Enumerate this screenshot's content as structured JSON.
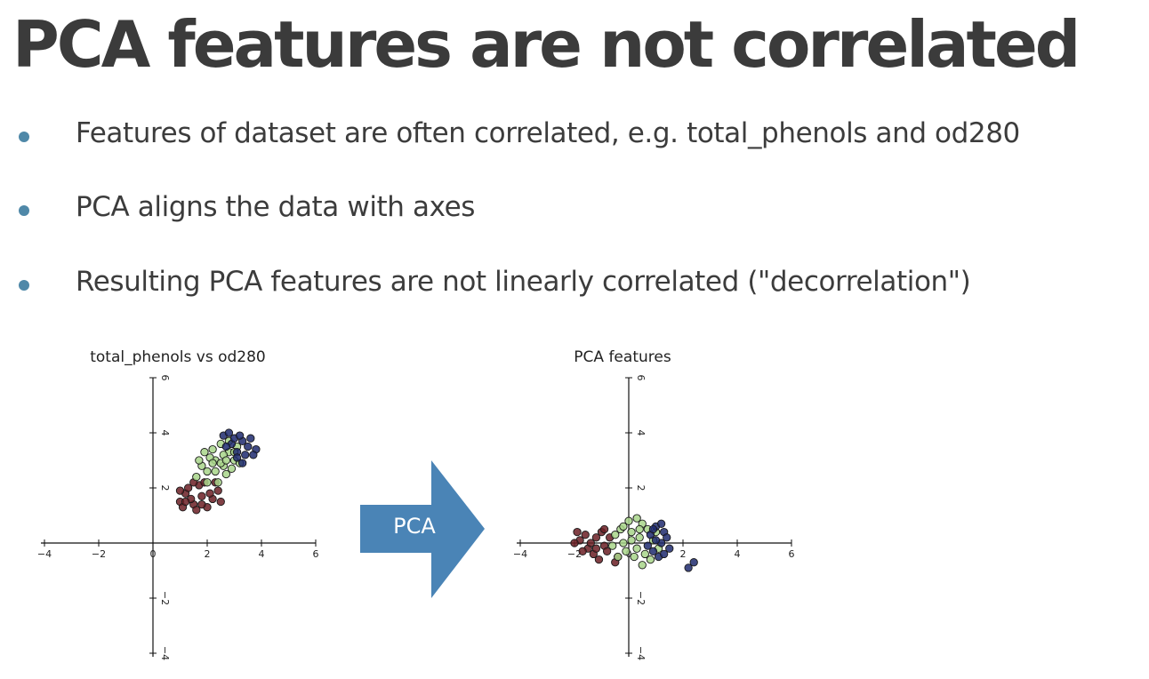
{
  "slide": {
    "title": "PCA features are not correlated",
    "bullets": [
      {
        "text": "Features of dataset are often correlated, e.g. total_phenols and od280"
      },
      {
        "text": "PCA aligns the data with axes"
      },
      {
        "text": "Resulting PCA features are not linearly correlated (\"decorrelation\")"
      }
    ],
    "arrow_label": "PCA",
    "colors": {
      "bullet": "#4f88a8",
      "arrow": "#4a84b6",
      "class_a": "#6b1f24",
      "class_b": "#a8d58a",
      "class_c": "#1e2a6e"
    }
  },
  "chart_data": [
    {
      "type": "scatter",
      "title": "total_phenols vs od280",
      "xlim": [
        -4,
        6
      ],
      "ylim": [
        -4,
        6
      ],
      "xticks": [
        -4,
        -2,
        0,
        2,
        4,
        6
      ],
      "yticks": [
        -4,
        -2,
        0,
        2,
        4,
        6
      ],
      "series": [
        {
          "color": "#6b1f24",
          "points": [
            [
              1.0,
              1.5
            ],
            [
              1.2,
              1.8
            ],
            [
              1.5,
              1.4
            ],
            [
              1.8,
              1.7
            ],
            [
              2.0,
              1.3
            ],
            [
              1.3,
              2.0
            ],
            [
              1.7,
              2.1
            ],
            [
              2.2,
              1.6
            ],
            [
              1.1,
              1.3
            ],
            [
              1.6,
              1.2
            ],
            [
              2.4,
              1.9
            ],
            [
              1.9,
              2.2
            ],
            [
              1.4,
              1.6
            ],
            [
              2.1,
              1.8
            ],
            [
              1.0,
              1.9
            ],
            [
              2.5,
              1.5
            ],
            [
              1.8,
              1.4
            ],
            [
              1.5,
              2.2
            ],
            [
              2.3,
              2.2
            ],
            [
              1.2,
              1.5
            ]
          ]
        },
        {
          "color": "#a8d58a",
          "points": [
            [
              2.0,
              2.6
            ],
            [
              2.3,
              3.0
            ],
            [
              2.6,
              2.8
            ],
            [
              2.8,
              3.3
            ],
            [
              2.2,
              3.4
            ],
            [
              2.5,
              3.6
            ],
            [
              3.0,
              3.0
            ],
            [
              2.7,
              2.5
            ],
            [
              1.8,
              2.8
            ],
            [
              2.4,
              2.2
            ],
            [
              3.1,
              3.5
            ],
            [
              2.9,
              2.7
            ],
            [
              1.6,
              2.4
            ],
            [
              2.1,
              3.1
            ],
            [
              2.6,
              3.2
            ],
            [
              3.2,
              2.9
            ],
            [
              2.3,
              2.6
            ],
            [
              1.9,
              3.3
            ],
            [
              2.8,
              3.7
            ],
            [
              2.0,
              2.2
            ],
            [
              2.5,
              2.9
            ],
            [
              3.0,
              3.3
            ],
            [
              1.7,
              3.0
            ],
            [
              2.2,
              2.9
            ],
            [
              2.7,
              3.0
            ]
          ]
        },
        {
          "color": "#1e2a6e",
          "points": [
            [
              2.6,
              3.9
            ],
            [
              2.9,
              3.6
            ],
            [
              3.1,
              3.3
            ],
            [
              3.3,
              3.7
            ],
            [
              2.8,
              4.0
            ],
            [
              3.0,
              3.8
            ],
            [
              3.4,
              3.2
            ],
            [
              3.2,
              3.9
            ],
            [
              3.8,
              3.4
            ],
            [
              3.7,
              3.2
            ],
            [
              3.5,
              3.5
            ],
            [
              2.7,
              3.5
            ],
            [
              3.1,
              3.1
            ],
            [
              3.3,
              2.9
            ],
            [
              3.6,
              3.8
            ]
          ]
        }
      ]
    },
    {
      "type": "scatter",
      "title": "PCA features",
      "xlim": [
        -4,
        6
      ],
      "ylim": [
        -4,
        6
      ],
      "xticks": [
        -4,
        -2,
        0,
        2,
        4,
        6
      ],
      "yticks": [
        -4,
        -2,
        0,
        2,
        4,
        6
      ],
      "series": [
        {
          "color": "#6b1f24",
          "points": [
            [
              -1.8,
              0.1
            ],
            [
              -1.5,
              -0.2
            ],
            [
              -1.2,
              0.2
            ],
            [
              -0.9,
              -0.1
            ],
            [
              -1.6,
              0.3
            ],
            [
              -1.3,
              -0.4
            ],
            [
              -1.0,
              0.4
            ],
            [
              -2.0,
              0.0
            ],
            [
              -0.8,
              -0.3
            ],
            [
              -1.4,
              0.0
            ],
            [
              -1.1,
              -0.6
            ],
            [
              -0.7,
              0.2
            ],
            [
              -1.7,
              -0.3
            ],
            [
              -0.4,
              -0.5
            ],
            [
              -1.9,
              0.4
            ],
            [
              -1.2,
              -0.2
            ],
            [
              -0.5,
              -0.7
            ],
            [
              -0.9,
              0.5
            ]
          ]
        },
        {
          "color": "#a8d58a",
          "points": [
            [
              -0.5,
              0.3
            ],
            [
              -0.2,
              0.0
            ],
            [
              0.1,
              0.4
            ],
            [
              0.3,
              -0.2
            ],
            [
              0.0,
              0.8
            ],
            [
              0.4,
              0.2
            ],
            [
              0.6,
              -0.4
            ],
            [
              -0.3,
              0.5
            ],
            [
              0.2,
              -0.5
            ],
            [
              0.7,
              0.5
            ],
            [
              -0.1,
              -0.3
            ],
            [
              0.5,
              0.7
            ],
            [
              0.9,
              0.1
            ],
            [
              0.3,
              0.9
            ],
            [
              -0.6,
              -0.1
            ],
            [
              0.8,
              -0.6
            ],
            [
              0.1,
              0.1
            ],
            [
              1.0,
              0.4
            ],
            [
              -0.4,
              -0.5
            ],
            [
              0.5,
              -0.8
            ],
            [
              1.1,
              -0.2
            ],
            [
              0.4,
              0.5
            ],
            [
              -0.2,
              0.6
            ]
          ]
        },
        {
          "color": "#1e2a6e",
          "points": [
            [
              0.8,
              0.3
            ],
            [
              1.0,
              0.6
            ],
            [
              1.2,
              0.0
            ],
            [
              0.9,
              -0.3
            ],
            [
              1.3,
              0.4
            ],
            [
              1.1,
              -0.5
            ],
            [
              1.4,
              0.2
            ],
            [
              0.7,
              -0.1
            ],
            [
              1.2,
              0.7
            ],
            [
              1.5,
              -0.2
            ],
            [
              1.0,
              0.1
            ],
            [
              1.3,
              -0.4
            ],
            [
              2.4,
              -0.7
            ],
            [
              2.2,
              -0.9
            ],
            [
              0.9,
              0.5
            ]
          ]
        }
      ]
    }
  ]
}
